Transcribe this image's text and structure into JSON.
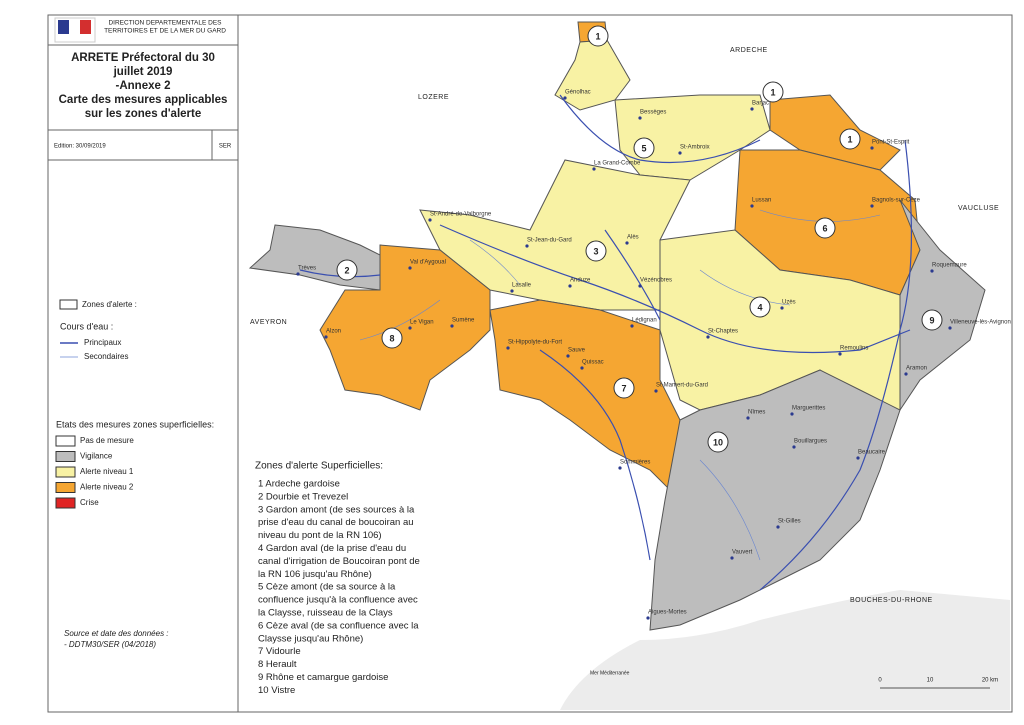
{
  "header": {
    "org_lines": [
      "DIRECTION DEPARTEMENTALE DES",
      "TERRITOIRES ET DE LA MER DU GARD"
    ]
  },
  "title_lines": [
    "ARRETE Préfectoral du 30",
    "juillet 2019",
    "-Annexe 2",
    "Carte des mesures applicables",
    "sur les zones d'alerte"
  ],
  "edition": "Edition: 30/09/2019",
  "service": "SER",
  "legend": {
    "zones": "Zones d'alerte :",
    "rivers_title": "Cours d'eau :",
    "rivers": [
      "Principaux",
      "Secondaires"
    ],
    "states_title": "Etats des mesures zones superficielles:",
    "states": [
      {
        "label": "Pas de mesure",
        "color": "#ffffff"
      },
      {
        "label": "Vigilance",
        "color": "#bdbdbd"
      },
      {
        "label": "Alerte niveau 1",
        "color": "#f8f2a4"
      },
      {
        "label": "Alerte niveau 2",
        "color": "#f5a632"
      },
      {
        "label": "Crise",
        "color": "#e02424"
      }
    ]
  },
  "source": [
    "Source et date des données :",
    "- DDTM30/SER (04/2018)"
  ],
  "zones_title": "Zones d'alerte Superficielles:",
  "zones_list": [
    [
      "1 Ardeche gardoise"
    ],
    [
      "2 Dourbie et Trevezel"
    ],
    [
      "3 Gardon amont (de ses sources à la",
      "prise d'eau du canal de boucoiran au",
      "niveau du pont de la RN 106)"
    ],
    [
      "4 Gardon aval (de la prise d'eau du",
      "canal d'irrigation de Boucoiran pont de",
      "la RN 106 jusqu'au Rhône)"
    ],
    [
      "5 Cèze amont (de sa source à la",
      "confluence jusqu'à la confluence avec",
      " la Claysse, ruisseau de la Clays"
    ],
    [
      "6 Cèze aval (de sa confluence avec la",
      "Claysse jusqu'au Rhône)"
    ],
    [
      "7 Vidourle"
    ],
    [
      "8 Herault"
    ],
    [
      "9 Rhône et camargue gardoise"
    ],
    [
      "10 Vistre"
    ]
  ],
  "neighbors": [
    "ARDECHE",
    "LOZERE",
    "VAUCLUSE",
    "AVEYRON",
    "BOUCHES-DU-RHONE"
  ],
  "sea": "Mer Méditerranée",
  "towns": [
    "Génolhac",
    "Barjac",
    "Bessèges",
    "St-Ambroix",
    "Pont-St-Esprit",
    "La Grand-Combe",
    "Lussan",
    "Bagnols-sur-Cèze",
    "St-André-de-Valborgne",
    "St-Jean-du-Gard",
    "Alès",
    "Trèves",
    "Val d'Aygoual",
    "Anduze",
    "Vézénobres",
    "Lasalle",
    "Roquemaure",
    "Uzès",
    "Lédignan",
    "Alzon",
    "Le Vigan",
    "Sumène",
    "St-Hippolyte-du-Fort",
    "Sauve",
    "St-Chaptes",
    "Villeneuve-lès-Avignon",
    "Remoulins",
    "Quissac",
    "St-Mamert-du-Gard",
    "Aramon",
    "Nîmes",
    "Marguerittes",
    "Bouillargues",
    "Beaucaire",
    "Sommières",
    "St-Gilles",
    "Vauvert",
    "Aigues-Mortes"
  ],
  "zone_markers": [
    "1",
    "1",
    "1",
    "2",
    "3",
    "4",
    "5",
    "6",
    "7",
    "8",
    "9",
    "10"
  ],
  "scale": [
    "0",
    "10",
    "20 km"
  ]
}
